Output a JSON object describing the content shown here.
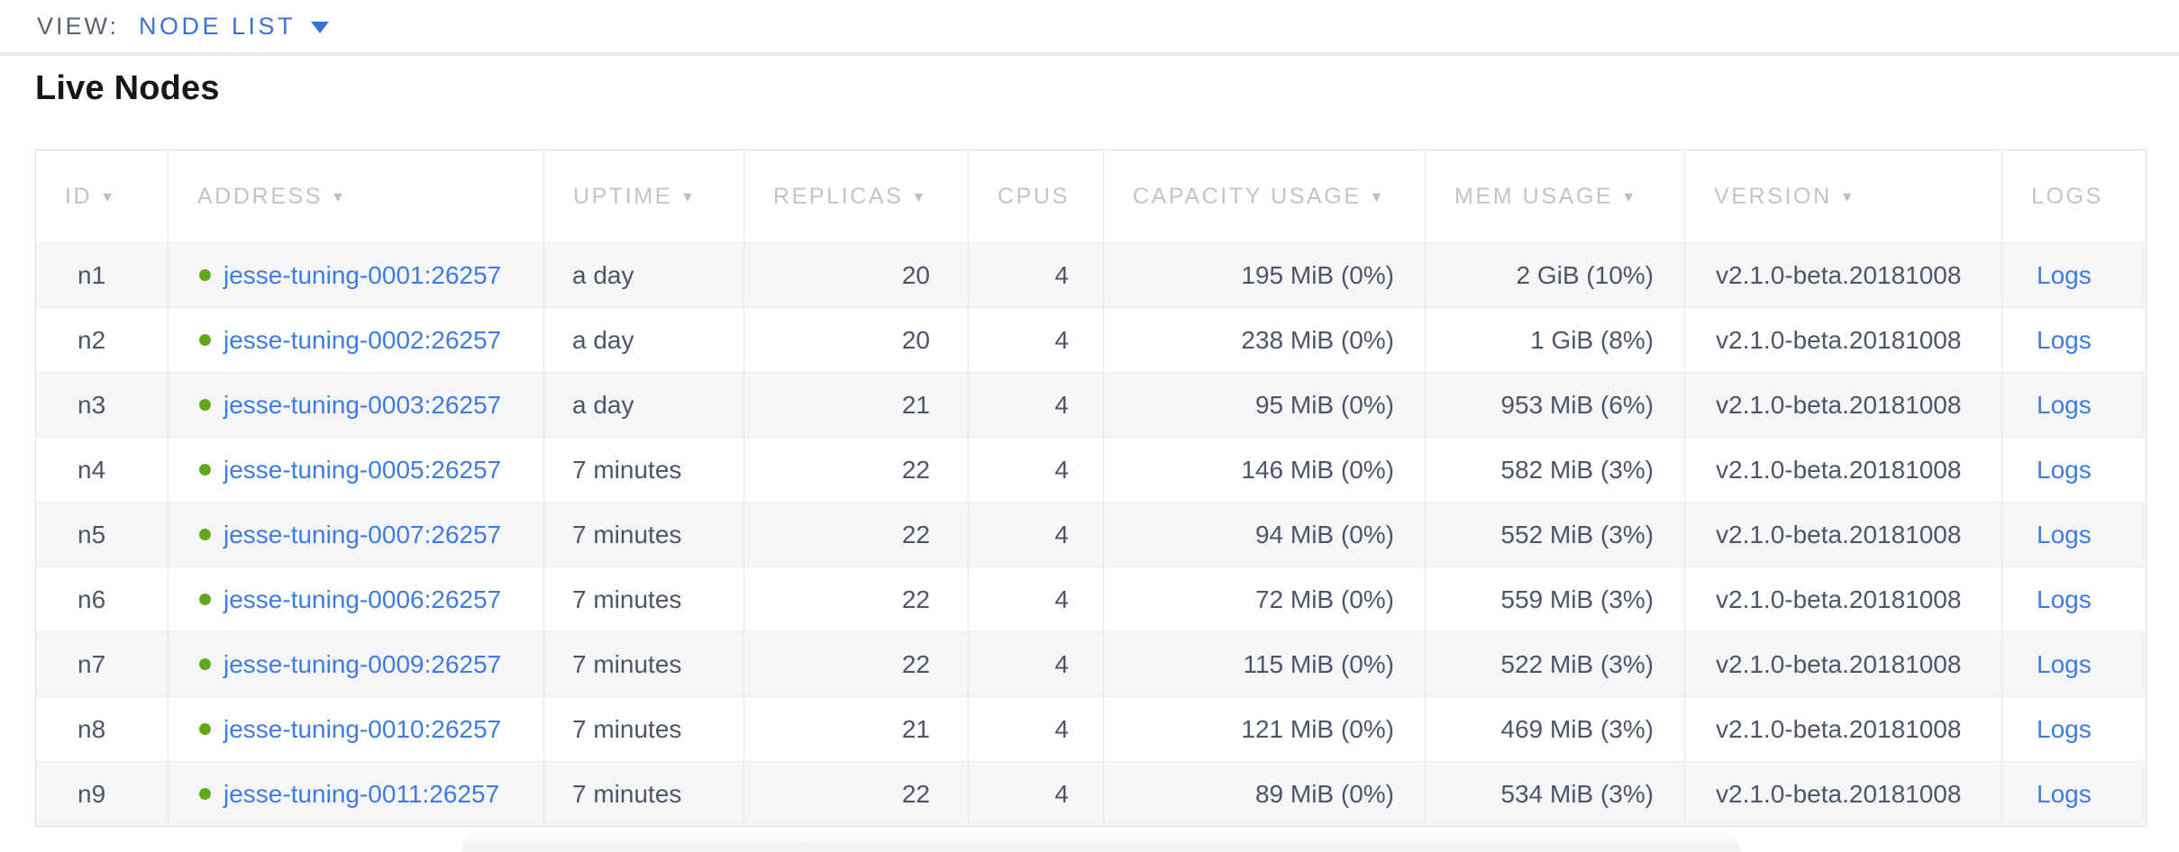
{
  "view_bar": {
    "label": "VIEW:",
    "selected_view": "NODE LIST"
  },
  "title": "Live Nodes",
  "colors": {
    "link_blue": "#3e7ce1",
    "view_accent_blue": "#3c70d9",
    "live_node_dot_green": "#61a81c",
    "header_text_gray": "#c2c4c9",
    "cell_text": "#4d5668",
    "row_stripe": "#f6f6f8"
  },
  "table": {
    "sort_icon": "▼",
    "logs_label": "Logs",
    "columns": [
      {
        "key": "id",
        "label": "ID",
        "sortable": true
      },
      {
        "key": "address",
        "label": "ADDRESS",
        "sortable": true
      },
      {
        "key": "uptime",
        "label": "UPTIME",
        "sortable": true
      },
      {
        "key": "replicas",
        "label": "REPLICAS",
        "sortable": true
      },
      {
        "key": "cpus",
        "label": "CPUS",
        "sortable": false
      },
      {
        "key": "capacity",
        "label": "CAPACITY USAGE",
        "sortable": true
      },
      {
        "key": "mem",
        "label": "MEM USAGE",
        "sortable": true
      },
      {
        "key": "version",
        "label": "VERSION",
        "sortable": true
      },
      {
        "key": "logs",
        "label": "LOGS",
        "sortable": false
      }
    ],
    "rows": [
      {
        "id": "n1",
        "address": "jesse-tuning-0001:26257",
        "uptime": "a day",
        "replicas": "20",
        "cpus": "4",
        "capacity": "195 MiB (0%)",
        "mem": "2 GiB (10%)",
        "version": "v2.1.0-beta.20181008"
      },
      {
        "id": "n2",
        "address": "jesse-tuning-0002:26257",
        "uptime": "a day",
        "replicas": "20",
        "cpus": "4",
        "capacity": "238 MiB (0%)",
        "mem": "1 GiB (8%)",
        "version": "v2.1.0-beta.20181008"
      },
      {
        "id": "n3",
        "address": "jesse-tuning-0003:26257",
        "uptime": "a day",
        "replicas": "21",
        "cpus": "4",
        "capacity": "95 MiB (0%)",
        "mem": "953 MiB (6%)",
        "version": "v2.1.0-beta.20181008"
      },
      {
        "id": "n4",
        "address": "jesse-tuning-0005:26257",
        "uptime": "7 minutes",
        "replicas": "22",
        "cpus": "4",
        "capacity": "146 MiB (0%)",
        "mem": "582 MiB (3%)",
        "version": "v2.1.0-beta.20181008"
      },
      {
        "id": "n5",
        "address": "jesse-tuning-0007:26257",
        "uptime": "7 minutes",
        "replicas": "22",
        "cpus": "4",
        "capacity": "94 MiB (0%)",
        "mem": "552 MiB (3%)",
        "version": "v2.1.0-beta.20181008"
      },
      {
        "id": "n6",
        "address": "jesse-tuning-0006:26257",
        "uptime": "7 minutes",
        "replicas": "22",
        "cpus": "4",
        "capacity": "72 MiB (0%)",
        "mem": "559 MiB (3%)",
        "version": "v2.1.0-beta.20181008"
      },
      {
        "id": "n7",
        "address": "jesse-tuning-0009:26257",
        "uptime": "7 minutes",
        "replicas": "22",
        "cpus": "4",
        "capacity": "115 MiB (0%)",
        "mem": "522 MiB (3%)",
        "version": "v2.1.0-beta.20181008"
      },
      {
        "id": "n8",
        "address": "jesse-tuning-0010:26257",
        "uptime": "7 minutes",
        "replicas": "21",
        "cpus": "4",
        "capacity": "121 MiB (0%)",
        "mem": "469 MiB (3%)",
        "version": "v2.1.0-beta.20181008"
      },
      {
        "id": "n9",
        "address": "jesse-tuning-0011:26257",
        "uptime": "7 minutes",
        "replicas": "22",
        "cpus": "4",
        "capacity": "89 MiB (0%)",
        "mem": "534 MiB (3%)",
        "version": "v2.1.0-beta.20181008"
      }
    ]
  }
}
